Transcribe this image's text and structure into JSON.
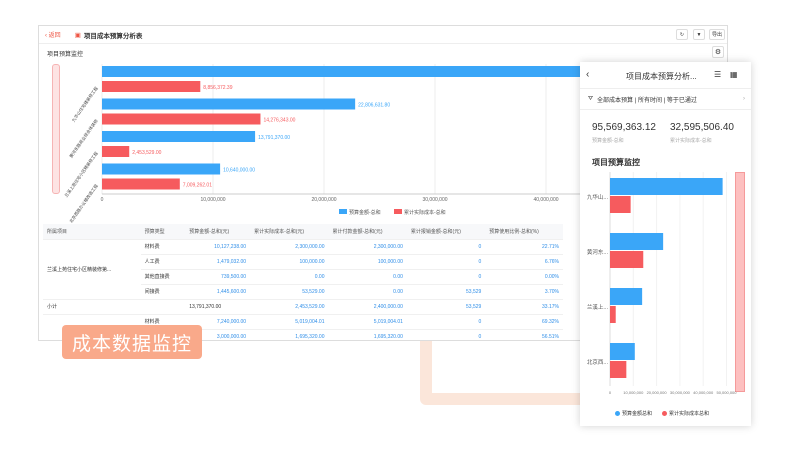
{
  "window": {
    "back_label": "返回",
    "title": "项目成本预算分析表",
    "buttons": [
      "↻",
      "▼",
      "导出"
    ],
    "section_title": "项目预算监控"
  },
  "colors": {
    "budget": "#3aa6f8",
    "actual": "#f65b5e",
    "accent": "#e8533f",
    "tag": "#f9a98a"
  },
  "chart_data": {
    "type": "bar",
    "orientation": "horizontal",
    "categories": [
      "九华山住宅楼装修工程",
      "黄河东路商业综合体装修",
      "兰溪上苑住宅小区精装修工程",
      "北京西路办公楼改造工程"
    ],
    "series": [
      {
        "name": "预算金额-总和",
        "values": [
          48331361.32,
          22806631.8,
          13791370.0,
          10640000.0
        ],
        "labels": [
          "",
          "22,806,631.80",
          "13,791,370.00",
          "10,640,000.00"
        ]
      },
      {
        "name": "累计实际成本-总和",
        "values": [
          8856372.39,
          14276343.0,
          2453529.0,
          7009262.01
        ],
        "labels": [
          "8,856,372.39",
          "14,276,343.00",
          "2,453,529.00",
          "7,009,262.01"
        ]
      }
    ],
    "xticks": [
      "0",
      "10,000,000",
      "20,000,000",
      "30,000,000",
      "40,000,000"
    ],
    "xlim": [
      0,
      50000000
    ],
    "grid": true,
    "legend": "bottom"
  },
  "table": {
    "headers": [
      "所属项目",
      "预算类型",
      "预算金额-总和(元)",
      "累计实际成本-总和(元)",
      "累计付款金额-总和(元)",
      "累计报销金额-总和(元)",
      "预算使用比例-总和(%)"
    ],
    "group": "兰溪上苑住宅小区精装修第...",
    "rows": [
      [
        "材料费",
        "10,127,238.00",
        "2,300,000.00",
        "2,300,000.00",
        "0",
        "22.71%"
      ],
      [
        "人工费",
        "1,479,032.00",
        "100,000.00",
        "100,000.00",
        "0",
        "6.76%"
      ],
      [
        "其他直接费",
        "739,500.00",
        "0.00",
        "0.00",
        "0",
        "0.00%"
      ],
      [
        "间接费",
        "1,445,600.00",
        "53,529.00",
        "0.00",
        "53,529",
        "3.70%"
      ]
    ],
    "subtotal": [
      "小计",
      "13,791,370.00",
      "2,453,529.00",
      "2,400,000.00",
      "53,529",
      "33.17%"
    ],
    "rows2": [
      [
        "材料费",
        "7,240,000.00",
        "5,019,004.01",
        "5,019,004.01",
        "0",
        "69.32%"
      ],
      [
        "",
        "3,000,000.00",
        "1,695,320.00",
        "1,695,320.00",
        "0",
        "56.51%"
      ]
    ]
  },
  "tag": "成本数据监控",
  "mobile": {
    "title": "项目成本预算分析...",
    "filter": "全部成本预算 | 所有时间 | 等于已通过",
    "kpi1": {
      "value": "95,569,363.12",
      "label": "预算金额-总和"
    },
    "kpi2": {
      "value": "32,595,506.40",
      "label": "累计实际成本-总和"
    },
    "section": "项目预算监控",
    "cats": [
      "九华山...",
      "黄河东...",
      "兰溪上...",
      "北京西..."
    ],
    "xticks": [
      "0",
      "10,000,000",
      "20,000,000",
      "30,000,000",
      "40,000,000",
      "50,000,000"
    ],
    "legend": [
      "预算金额总和",
      "累计实际成本总和"
    ]
  }
}
